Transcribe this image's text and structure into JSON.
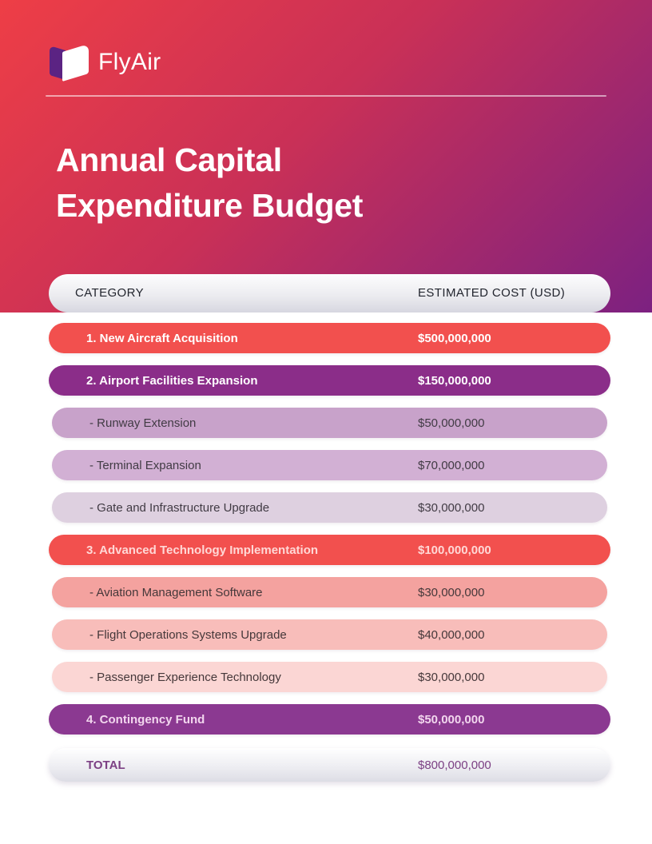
{
  "brand": {
    "name": "FlyAir"
  },
  "title": {
    "line1": "Annual Capital",
    "line2": "Expenditure Budget"
  },
  "colors": {
    "gradient_top_left": "#ee3e46",
    "gradient_mid": "#c93057",
    "gradient_bottom_right": "#7c2181",
    "logo_purple": "#5b2383",
    "accent_red": "#f2504e",
    "accent_purple": "#8b2d89"
  },
  "table": {
    "headers": {
      "category": "CATEGORY",
      "cost": "ESTIMATED COST (USD)"
    },
    "rows": [
      {
        "label": "1. New Aircraft Acquisition",
        "cost": "$500,000,000",
        "level": "main",
        "bg": "#f2504e",
        "fg": "#ffffff"
      },
      {
        "label": "2. Airport Facilities Expansion",
        "cost": "$150,000,000",
        "level": "main",
        "bg": "#8b2d89",
        "fg": "#ffffff"
      },
      {
        "label": "- Runway Extension",
        "cost": "$50,000,000",
        "level": "sub",
        "bg": "#c8a2ca",
        "fg": "#413b44"
      },
      {
        "label": "- Terminal Expansion",
        "cost": "$70,000,000",
        "level": "sub",
        "bg": "#d2b0d4",
        "fg": "#413b44"
      },
      {
        "label": "- Gate and Infrastructure Upgrade",
        "cost": "$30,000,000",
        "level": "sub",
        "bg": "#ded0e0",
        "fg": "#413b44"
      },
      {
        "label": "3. Advanced Technology Implementation",
        "cost": "$100,000,000",
        "level": "main",
        "bg": "#f2504e",
        "fg": "#ffd8d6"
      },
      {
        "label": "- Aviation Management Software",
        "cost": "$30,000,000",
        "level": "sub",
        "bg": "#f4a29f",
        "fg": "#45383a"
      },
      {
        "label": "- Flight Operations Systems Upgrade",
        "cost": "$40,000,000",
        "level": "sub",
        "bg": "#f8bdba",
        "fg": "#45383a"
      },
      {
        "label": "- Passenger Experience Technology",
        "cost": "$30,000,000",
        "level": "sub",
        "bg": "#fbd6d4",
        "fg": "#45383a"
      },
      {
        "label": "4. Contingency Fund",
        "cost": "$50,000,000",
        "level": "main",
        "bg": "#8b3991",
        "fg": "#f2d6ee"
      }
    ],
    "total": {
      "label": "TOTAL",
      "cost": "$800,000,000"
    }
  }
}
